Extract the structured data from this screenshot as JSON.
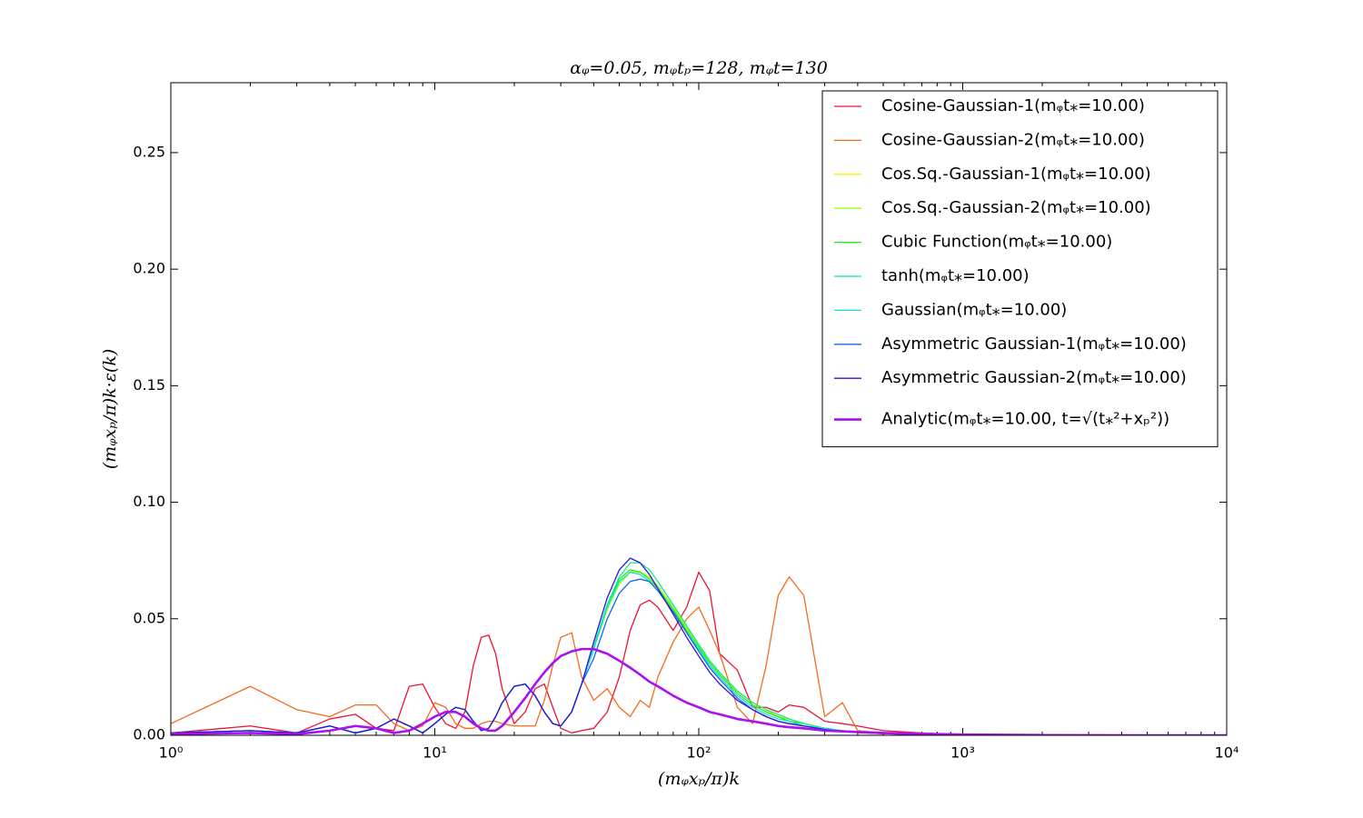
{
  "chart_data": {
    "type": "line",
    "title": "αᵩ=0.05, mᵩtₚ=128, mᵩt=130",
    "x_label": "(mᵩxₚ/π)k",
    "y_label": "(mᵩxₚ/π)k·ε(k)",
    "log_x": true,
    "xlim": [
      1,
      10000
    ],
    "ylim": [
      0,
      0.28
    ],
    "xticks": [
      {
        "value": 1,
        "label": "10⁰"
      },
      {
        "value": 10,
        "label": "10¹"
      },
      {
        "value": 100,
        "label": "10²"
      },
      {
        "value": 1000,
        "label": "10³"
      },
      {
        "value": 10000,
        "label": "10⁴"
      }
    ],
    "yticks": [
      {
        "value": 0,
        "label": "0.00"
      },
      {
        "value": 0.05,
        "label": "0.05"
      },
      {
        "value": 0.1,
        "label": "0.10"
      },
      {
        "value": 0.15,
        "label": "0.15"
      },
      {
        "value": 0.2,
        "label": "0.20"
      },
      {
        "value": 0.25,
        "label": "0.25"
      }
    ],
    "legend": "upper right",
    "x": [
      1,
      2,
      3,
      4,
      5,
      6,
      7,
      8,
      9,
      10,
      11,
      12,
      13,
      14,
      15,
      16,
      17,
      18,
      20,
      22,
      24,
      26,
      28,
      30,
      33,
      36,
      40,
      45,
      50,
      55,
      60,
      65,
      70,
      80,
      90,
      100,
      110,
      120,
      140,
      160,
      180,
      200,
      220,
      250,
      300,
      350,
      400,
      500,
      700,
      1000,
      2000,
      5000,
      10000
    ],
    "series": [
      {
        "name": "Cosine-Gaussian-1(mᵩt⁎=10.00)",
        "color": "#ee1133",
        "width": 1.3,
        "values": [
          0.001,
          0.004,
          0.001,
          0.007,
          0.009,
          0.003,
          0.002,
          0.021,
          0.022,
          0.012,
          0.005,
          0.003,
          0.01,
          0.03,
          0.042,
          0.043,
          0.035,
          0.02,
          0.005,
          0.01,
          0.02,
          0.022,
          0.012,
          0.003,
          0.001,
          0.002,
          0.003,
          0.01,
          0.025,
          0.045,
          0.056,
          0.058,
          0.055,
          0.045,
          0.055,
          0.07,
          0.062,
          0.035,
          0.028,
          0.012,
          0.012,
          0.01,
          0.013,
          0.012,
          0.006,
          0.005,
          0.004,
          0.002,
          0.001,
          0.0003,
          0,
          0,
          0
        ]
      },
      {
        "name": "Cosine-Gaussian-2(mᵩt⁎=10.00)",
        "color": "#f56a1d",
        "width": 1.3,
        "values": [
          0.005,
          0.021,
          0.011,
          0.008,
          0.013,
          0.013,
          0.005,
          0.002,
          0.004,
          0.014,
          0.012,
          0.005,
          0.003,
          0.003,
          0.005,
          0.006,
          0.006,
          0.005,
          0.004,
          0.004,
          0.004,
          0.015,
          0.03,
          0.042,
          0.044,
          0.025,
          0.015,
          0.02,
          0.012,
          0.008,
          0.015,
          0.012,
          0.025,
          0.04,
          0.05,
          0.055,
          0.045,
          0.035,
          0.012,
          0.005,
          0.03,
          0.06,
          0.068,
          0.06,
          0.008,
          0.014,
          0.002,
          0.001,
          0.001,
          0.0002,
          0,
          0,
          0
        ]
      },
      {
        "name": "Cos.Sq.-Gaussian-1(mᵩt⁎=10.00)",
        "color": "#ffee00",
        "width": 1.3,
        "values": [
          0.001,
          0.002,
          0.001,
          0.004,
          0.001,
          0.003,
          0.007,
          0.004,
          0.001,
          0.005,
          0.009,
          0.012,
          0.011,
          0.006,
          0.002,
          0.003,
          0.008,
          0.014,
          0.021,
          0.022,
          0.017,
          0.01,
          0.005,
          0.004,
          0.01,
          0.022,
          0.037,
          0.054,
          0.065,
          0.07,
          0.07,
          0.067,
          0.063,
          0.054,
          0.045,
          0.038,
          0.031,
          0.026,
          0.018,
          0.013,
          0.01,
          0.008,
          0.006,
          0.005,
          0.003,
          0.002,
          0.0015,
          0.0008,
          0.0003,
          0.0001,
          0,
          0,
          0
        ]
      },
      {
        "name": "Cos.Sq.-Gaussian-2(mᵩt⁎=10.00)",
        "color": "#99ff11",
        "width": 1.3,
        "values": [
          0.001,
          0.002,
          0.001,
          0.004,
          0.001,
          0.003,
          0.007,
          0.004,
          0.001,
          0.005,
          0.009,
          0.012,
          0.011,
          0.006,
          0.002,
          0.003,
          0.008,
          0.014,
          0.021,
          0.022,
          0.017,
          0.01,
          0.005,
          0.004,
          0.01,
          0.022,
          0.037,
          0.054,
          0.065,
          0.07,
          0.07,
          0.068,
          0.064,
          0.055,
          0.046,
          0.039,
          0.032,
          0.027,
          0.019,
          0.014,
          0.011,
          0.008,
          0.007,
          0.005,
          0.003,
          0.002,
          0.0016,
          0.0009,
          0.0003,
          0.0001,
          0,
          0,
          0
        ]
      },
      {
        "name": "Cubic Function(mᵩt⁎=10.00)",
        "color": "#22ee11",
        "width": 1.3,
        "values": [
          0.001,
          0.002,
          0.001,
          0.004,
          0.001,
          0.003,
          0.007,
          0.004,
          0.001,
          0.005,
          0.009,
          0.012,
          0.011,
          0.006,
          0.002,
          0.003,
          0.008,
          0.014,
          0.021,
          0.022,
          0.017,
          0.01,
          0.005,
          0.004,
          0.01,
          0.022,
          0.038,
          0.056,
          0.067,
          0.071,
          0.07,
          0.067,
          0.063,
          0.054,
          0.045,
          0.038,
          0.031,
          0.026,
          0.018,
          0.013,
          0.01,
          0.008,
          0.006,
          0.005,
          0.003,
          0.002,
          0.0015,
          0.0008,
          0.0003,
          0.0001,
          0,
          0,
          0
        ]
      },
      {
        "name": "tanh(mᵩt⁎=10.00)",
        "color": "#11ee88",
        "width": 1.3,
        "values": [
          0.001,
          0.002,
          0.001,
          0.004,
          0.001,
          0.003,
          0.007,
          0.004,
          0.001,
          0.005,
          0.009,
          0.012,
          0.011,
          0.006,
          0.002,
          0.003,
          0.008,
          0.014,
          0.021,
          0.022,
          0.017,
          0.01,
          0.005,
          0.004,
          0.01,
          0.022,
          0.038,
          0.056,
          0.068,
          0.074,
          0.074,
          0.071,
          0.066,
          0.056,
          0.047,
          0.039,
          0.032,
          0.027,
          0.019,
          0.014,
          0.011,
          0.009,
          0.007,
          0.005,
          0.003,
          0.002,
          0.0016,
          0.0009,
          0.0003,
          0.0001,
          0,
          0,
          0
        ]
      },
      {
        "name": "Gaussian(mᵩt⁎=10.00)",
        "color": "#11dddd",
        "width": 1.3,
        "values": [
          0.001,
          0.002,
          0.001,
          0.004,
          0.001,
          0.003,
          0.007,
          0.004,
          0.001,
          0.005,
          0.009,
          0.012,
          0.011,
          0.006,
          0.002,
          0.003,
          0.008,
          0.014,
          0.021,
          0.022,
          0.017,
          0.01,
          0.005,
          0.004,
          0.01,
          0.022,
          0.037,
          0.055,
          0.066,
          0.07,
          0.069,
          0.066,
          0.062,
          0.053,
          0.044,
          0.037,
          0.03,
          0.025,
          0.017,
          0.012,
          0.009,
          0.007,
          0.006,
          0.004,
          0.003,
          0.002,
          0.0014,
          0.0008,
          0.0003,
          0.0001,
          0,
          0,
          0
        ]
      },
      {
        "name": "Asymmetric Gaussian-1(mᵩt⁎=10.00)",
        "color": "#1166ee",
        "width": 1.3,
        "values": [
          0.001,
          0.002,
          0.001,
          0.004,
          0.001,
          0.003,
          0.007,
          0.004,
          0.001,
          0.005,
          0.009,
          0.012,
          0.011,
          0.006,
          0.002,
          0.003,
          0.008,
          0.014,
          0.021,
          0.022,
          0.017,
          0.01,
          0.005,
          0.004,
          0.01,
          0.022,
          0.033,
          0.05,
          0.061,
          0.066,
          0.067,
          0.066,
          0.062,
          0.053,
          0.044,
          0.036,
          0.029,
          0.024,
          0.016,
          0.011,
          0.008,
          0.006,
          0.005,
          0.004,
          0.0025,
          0.0017,
          0.0012,
          0.0007,
          0.0003,
          0.0001,
          0,
          0,
          0
        ]
      },
      {
        "name": "Asymmetric Gaussian-2(mᵩt⁎=10.00)",
        "color": "#3311dd",
        "width": 1.3,
        "values": [
          0.001,
          0.002,
          0.001,
          0.004,
          0.001,
          0.003,
          0.007,
          0.004,
          0.001,
          0.005,
          0.009,
          0.012,
          0.011,
          0.006,
          0.002,
          0.003,
          0.008,
          0.014,
          0.021,
          0.022,
          0.017,
          0.01,
          0.005,
          0.004,
          0.01,
          0.022,
          0.04,
          0.059,
          0.071,
          0.076,
          0.074,
          0.069,
          0.063,
          0.052,
          0.042,
          0.034,
          0.027,
          0.022,
          0.015,
          0.011,
          0.008,
          0.006,
          0.005,
          0.004,
          0.0025,
          0.0017,
          0.0012,
          0.0007,
          0.0003,
          0.0001,
          0,
          0,
          0
        ]
      },
      {
        "name": "Analytic(mᵩt⁎=10.00, t=√(t⁎²+xₚ²))",
        "color": "#aa11ee",
        "width": 2.6,
        "values": [
          0.0005,
          0.001,
          0.0005,
          0.002,
          0.004,
          0.003,
          0.001,
          0.002,
          0.005,
          0.008,
          0.01,
          0.01,
          0.008,
          0.005,
          0.003,
          0.002,
          0.002,
          0.004,
          0.01,
          0.016,
          0.022,
          0.027,
          0.031,
          0.034,
          0.036,
          0.037,
          0.037,
          0.035,
          0.032,
          0.029,
          0.026,
          0.023,
          0.021,
          0.017,
          0.014,
          0.012,
          0.01,
          0.009,
          0.007,
          0.006,
          0.005,
          0.004,
          0.0035,
          0.003,
          0.002,
          0.0017,
          0.0014,
          0.001,
          0.0006,
          0.0003,
          0.0001,
          0,
          0
        ]
      }
    ]
  }
}
